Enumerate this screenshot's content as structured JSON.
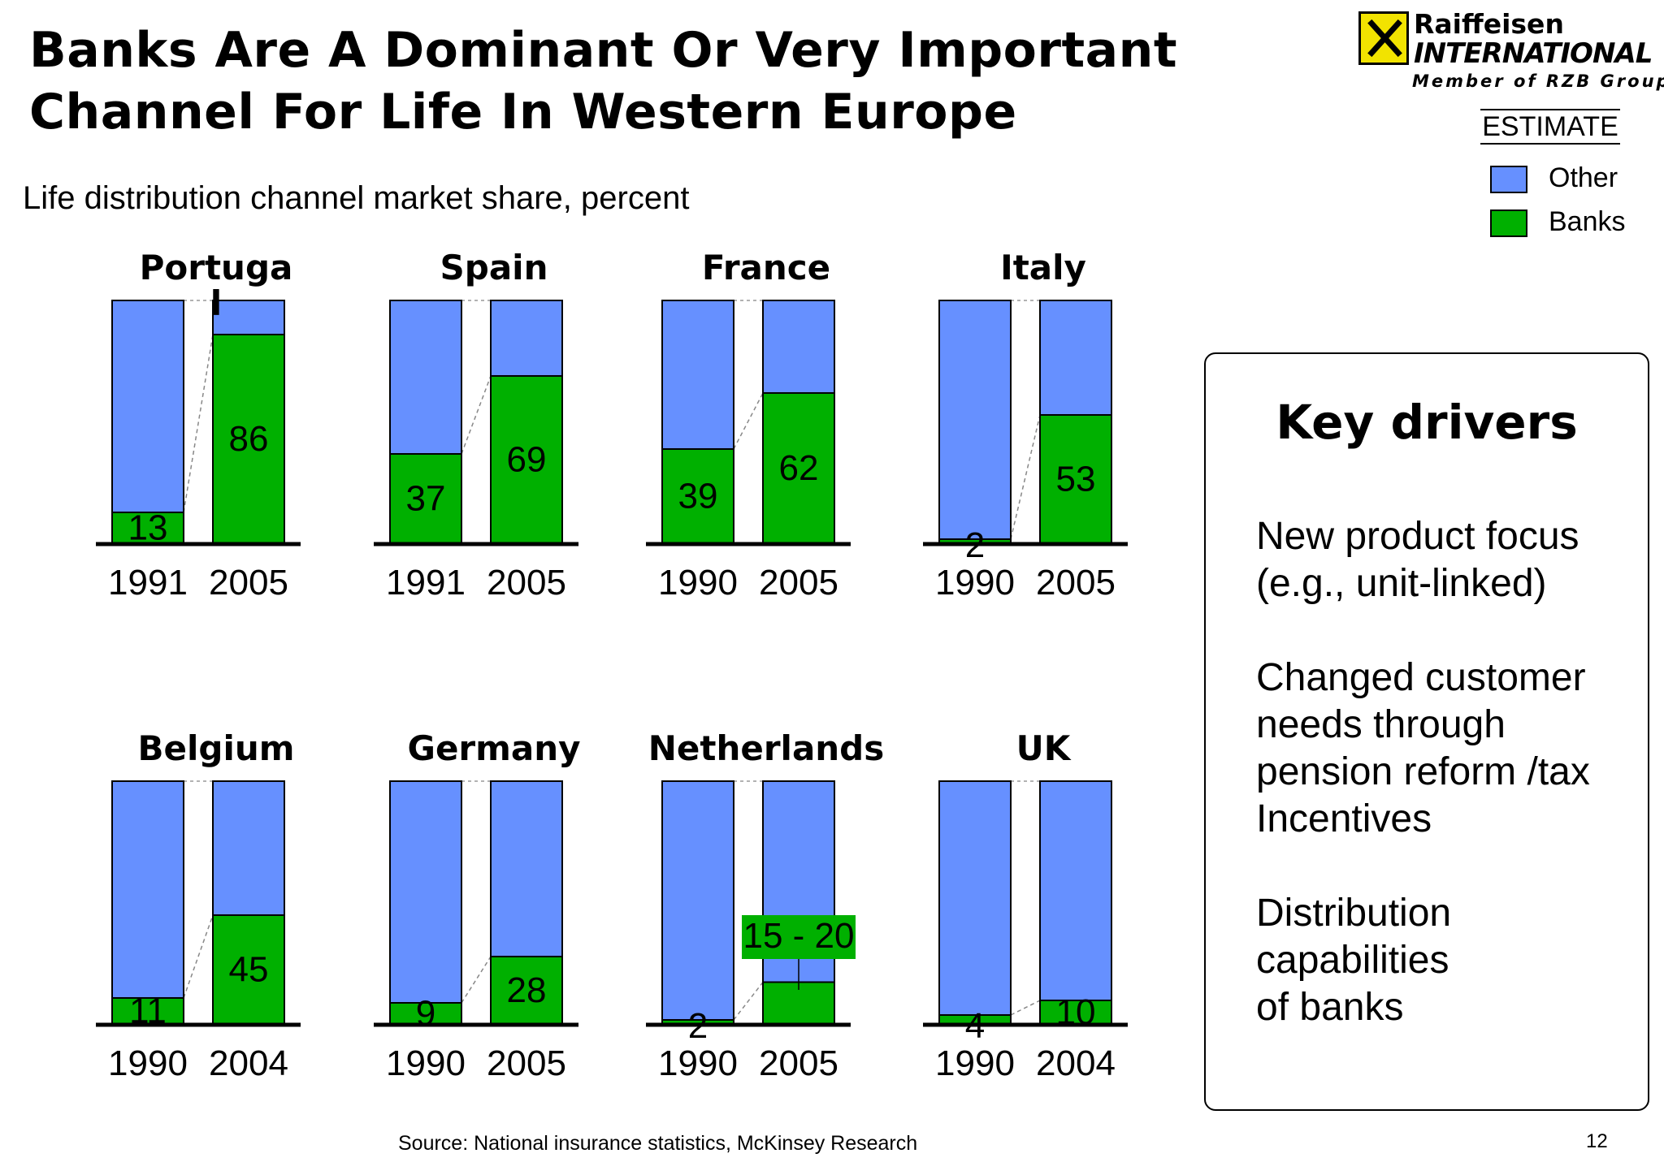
{
  "title": {
    "line1": "Banks Are A Dominant Or Very Important",
    "line2": "Channel For Life In Western Europe"
  },
  "subtitle": "Life distribution channel market share, percent",
  "logo": {
    "name1": "Raiffeisen",
    "name2": "INTERNATIONAL",
    "member": "Member of RZB Group"
  },
  "estimate_label": "ESTIMATE",
  "legend": [
    {
      "label": "Other",
      "color": "#6690ff"
    },
    {
      "label": "Banks",
      "color": "#00b000"
    }
  ],
  "chart_data": {
    "type": "bar",
    "subtype": "stacked-100-percent",
    "ylim": [
      0,
      100
    ],
    "series_names": [
      "Banks",
      "Other"
    ],
    "colors": {
      "banks": "#00b000",
      "other": "#6690ff"
    },
    "panels": [
      {
        "country": "Portugal",
        "title_lines": [
          "Portuga",
          "l"
        ],
        "years": [
          "1991",
          "2005"
        ],
        "banks": [
          13,
          86
        ],
        "labels": [
          "13",
          "86"
        ]
      },
      {
        "country": "Spain",
        "title_lines": [
          "Spain"
        ],
        "years": [
          "1991",
          "2005"
        ],
        "banks": [
          37,
          69
        ],
        "labels": [
          "37",
          "69"
        ]
      },
      {
        "country": "France",
        "title_lines": [
          "France"
        ],
        "years": [
          "1990",
          "2005"
        ],
        "banks": [
          39,
          62
        ],
        "labels": [
          "39",
          "62"
        ]
      },
      {
        "country": "Italy",
        "title_lines": [
          "Italy"
        ],
        "years": [
          "1990",
          "2005"
        ],
        "banks": [
          2,
          53
        ],
        "labels": [
          "2",
          "53"
        ]
      },
      {
        "country": "Belgium",
        "title_lines": [
          "Belgium"
        ],
        "years": [
          "1990",
          "2004"
        ],
        "banks": [
          11,
          45
        ],
        "labels": [
          "11",
          "45"
        ]
      },
      {
        "country": "Germany",
        "title_lines": [
          "Germany"
        ],
        "years": [
          "1990",
          "2005"
        ],
        "banks": [
          9,
          28
        ],
        "labels": [
          "9",
          "28"
        ]
      },
      {
        "country": "Netherlands",
        "title_lines": [
          "Netherlands"
        ],
        "years": [
          "1990",
          "2005"
        ],
        "banks": [
          2,
          17.5
        ],
        "labels": [
          "2",
          "15 - 20"
        ],
        "range": [
          null,
          [
            15,
            20
          ]
        ]
      },
      {
        "country": "UK",
        "title_lines": [
          "UK"
        ],
        "years": [
          "1990",
          "2004"
        ],
        "banks": [
          4,
          10
        ],
        "labels": [
          "4",
          "10"
        ]
      }
    ]
  },
  "key_drivers": {
    "heading": "Key drivers",
    "items": [
      {
        "lines": [
          "New product focus",
          "(e.g., unit-linked)"
        ]
      },
      {
        "lines": [
          "Changed customer",
          "needs through",
          "pension reform /tax",
          "Incentives"
        ]
      },
      {
        "lines": [
          "Distribution capabilities",
          "of banks"
        ]
      }
    ]
  },
  "source": "Source:  National insurance statistics, McKinsey Research",
  "page_number": "12"
}
